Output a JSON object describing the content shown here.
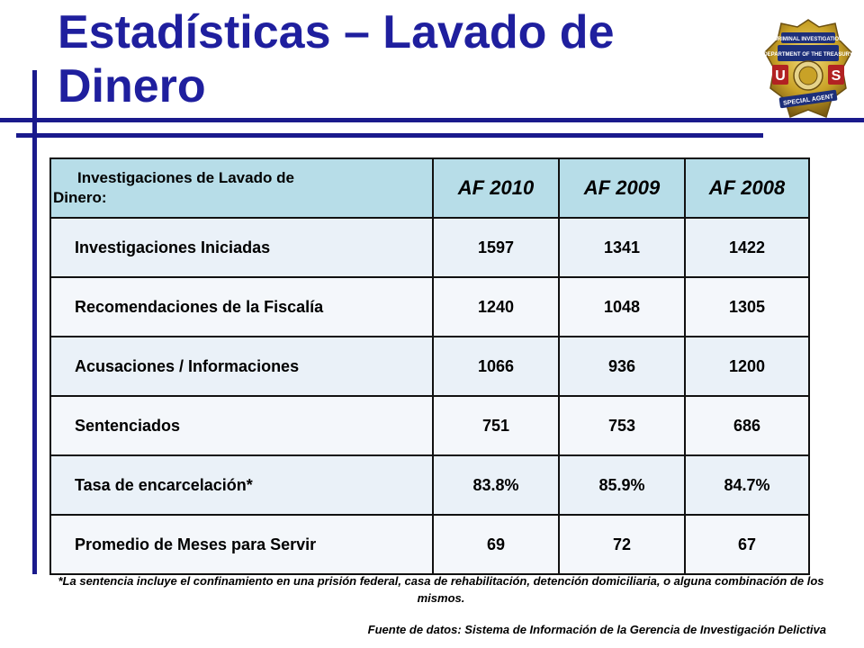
{
  "title": "Estadísticas – Lavado de Dinero",
  "badge": {
    "top_text": "CRIMINAL INVESTIGATION",
    "dept_text": "DEPARTMENT OF THE TREASURY",
    "left_letter": "U",
    "right_letter": "S",
    "bottom_text": "SPECIAL AGENT",
    "colors": {
      "gold": "#c9a227",
      "blue": "#1d2f7a",
      "red": "#b22222"
    }
  },
  "table": {
    "header_label": "Investigaciones de Lavado de Dinero:",
    "header_label_line1": "Investigaciones de Lavado de",
    "header_label_line2": "Dinero:",
    "years": [
      "AF 2010",
      "AF 2009",
      "AF 2008"
    ],
    "rows": [
      {
        "label": "Investigaciones Iniciadas",
        "values": [
          "1597",
          "1341",
          "1422"
        ]
      },
      {
        "label": "Recomendaciones de la Fiscalía",
        "values": [
          "1240",
          "1048",
          "1305"
        ]
      },
      {
        "label": "Acusaciones / Informaciones",
        "values": [
          "1066",
          "936",
          "1200"
        ]
      },
      {
        "label": "Sentenciados",
        "values": [
          "751",
          "753",
          "686"
        ]
      },
      {
        "label": "Tasa de encarcelación*",
        "values": [
          "83.8%",
          "85.9%",
          "84.7%"
        ]
      },
      {
        "label": "Promedio de Meses para Servir",
        "values": [
          "69",
          "72",
          "67"
        ]
      }
    ],
    "colors": {
      "header_bg": "#b7dde8",
      "row_bg": "#eaf1f8",
      "border": "#111111"
    }
  },
  "footnote": "*La sentencia incluye el confinamiento en una prisión federal, casa de rehabilitación, detención domiciliaria, o alguna combinación de los mismos.",
  "source": "Fuente de datos: Sistema de Información de la Gerencia de Investigación Delictiva",
  "accent_color": "#1a1a8c"
}
